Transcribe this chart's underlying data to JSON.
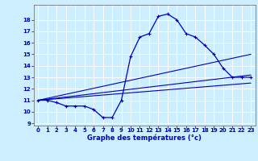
{
  "background_color": "#cceeff",
  "grid_color": "#ffffff",
  "line_color": "#0000bb",
  "title": "Graphe des températures (°c)",
  "xlim": [
    -0.5,
    23.5
  ],
  "ymin": 9,
  "ymax": 19,
  "yticks": [
    9,
    10,
    11,
    12,
    13,
    14,
    15,
    16,
    17,
    18
  ],
  "xticks": [
    0,
    1,
    2,
    3,
    4,
    5,
    6,
    7,
    8,
    9,
    10,
    11,
    12,
    13,
    14,
    15,
    16,
    17,
    18,
    19,
    20,
    21,
    22,
    23
  ],
  "line1_x": [
    0,
    1,
    2,
    3,
    4,
    5,
    6,
    7,
    8,
    9,
    10,
    11,
    12,
    13,
    14,
    15,
    16,
    17,
    18,
    19,
    20,
    21,
    22,
    23
  ],
  "line1_y": [
    11.0,
    11.0,
    10.8,
    10.5,
    10.5,
    10.5,
    10.2,
    9.5,
    9.5,
    11.0,
    14.8,
    16.5,
    16.8,
    18.3,
    18.5,
    18.0,
    16.8,
    16.5,
    15.8,
    15.0,
    13.8,
    13.0,
    13.0,
    13.0
  ],
  "line2_x": [
    0,
    23
  ],
  "line2_y": [
    11.0,
    12.5
  ],
  "line3_x": [
    0,
    23
  ],
  "line3_y": [
    11.0,
    13.2
  ],
  "line4_x": [
    0,
    23
  ],
  "line4_y": [
    11.0,
    15.0
  ],
  "tick_fontsize": 5.0,
  "xlabel_fontsize": 6.0
}
